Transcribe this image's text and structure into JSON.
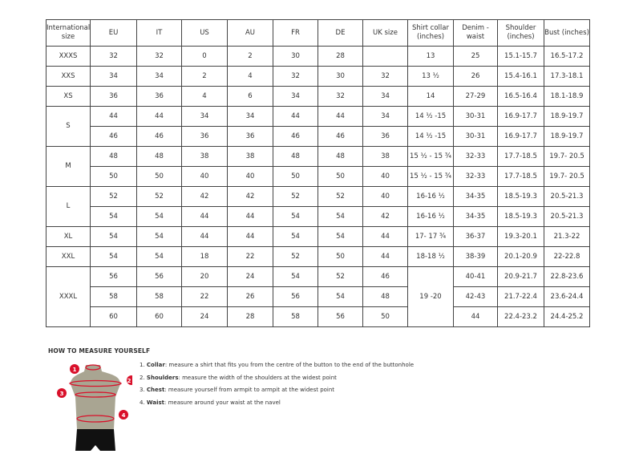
{
  "table": {
    "headers": [
      "International size",
      "EU",
      "IT",
      "US",
      "AU",
      "FR",
      "DE",
      "UK size",
      "Shirt collar (inches)",
      "Denim - waist",
      "Shoulder (inches)",
      "Bust (inches)"
    ],
    "rows": [
      [
        "XXXS",
        "32",
        "32",
        "0",
        "2",
        "30",
        "28",
        "",
        "13",
        "25",
        "15.1-15.7",
        "16.5-17.2"
      ],
      [
        "XXS",
        "34",
        "34",
        "2",
        "4",
        "32",
        "30",
        "32",
        "13 ½",
        "26",
        "15.4-16.1",
        "17.3-18.1"
      ],
      [
        "XS",
        "36",
        "36",
        "4",
        "6",
        "34",
        "32",
        "34",
        "14",
        "27-29",
        "16.5-16.4",
        "18.1-18.9"
      ],
      [
        "S",
        "44",
        "44",
        "34",
        "34",
        "44",
        "44",
        "34",
        "14 ½ -15",
        "30-31",
        "16.9-17.7",
        "18.9-19.7"
      ],
      [
        "",
        "46",
        "46",
        "36",
        "36",
        "46",
        "46",
        "36",
        "14 ½ -15",
        "30-31",
        "16.9-17.7",
        "18.9-19.7"
      ],
      [
        "M",
        "48",
        "48",
        "38",
        "38",
        "48",
        "48",
        "38",
        "15 ½ - 15 ¾",
        "32-33",
        "17.7-18.5",
        "19.7- 20.5"
      ],
      [
        "",
        "50",
        "50",
        "40",
        "40",
        "50",
        "50",
        "40",
        "15 ½ - 15 ¾",
        "32-33",
        "17.7-18.5",
        "19.7- 20.5"
      ],
      [
        "L",
        "52",
        "52",
        "42",
        "42",
        "52",
        "52",
        "40",
        "16-16 ½",
        "34-35",
        "18.5-19.3",
        "20.5-21.3"
      ],
      [
        "",
        "54",
        "54",
        "44",
        "44",
        "54",
        "54",
        "42",
        "16-16 ½",
        "34-35",
        "18.5-19.3",
        "20.5-21.3"
      ],
      [
        "XL",
        "54",
        "54",
        "44",
        "44",
        "54",
        "54",
        "44",
        "17- 17 ¾",
        "36-37",
        "19.3-20.1",
        "21.3-22"
      ],
      [
        "XXL",
        "54",
        "54",
        "18",
        "22",
        "52",
        "50",
        "44",
        "18-18 ½",
        "38-39",
        "20.1-20.9",
        "22-22.8"
      ],
      [
        "XXXL",
        "56",
        "56",
        "20",
        "24",
        "54",
        "52",
        "46",
        "19 -20",
        "40-41",
        "20.9-21.7",
        "22.8-23.6"
      ],
      [
        "",
        "58",
        "58",
        "22",
        "26",
        "56",
        "54",
        "48",
        "",
        "42-43",
        "21.7-22.4",
        "23.6-24.4"
      ],
      [
        "",
        "60",
        "60",
        "24",
        "28",
        "58",
        "56",
        "50",
        "",
        "44",
        "22.4-23.2",
        "24.4-25.2"
      ]
    ]
  },
  "guide": {
    "title": "HOW TO MEASURE YOURSELF",
    "steps": [
      {
        "num": "1.",
        "name": "Collar",
        "text": ": measure a shirt that fits you from the centre of the button to the end of the buttonhole"
      },
      {
        "num": "2.",
        "name": "Shoulders",
        "text": ": measure the width of the shoulders at the widest point"
      },
      {
        "num": "3.",
        "name": "Chest",
        "text": ": measure yourself from armpit to armpit at the widest point"
      },
      {
        "num": "4.",
        "name": "Waist",
        "text": ": measure around your waist at the navel"
      }
    ],
    "markers": [
      "1",
      "2",
      "3",
      "4"
    ],
    "accent": "#d9102a"
  }
}
